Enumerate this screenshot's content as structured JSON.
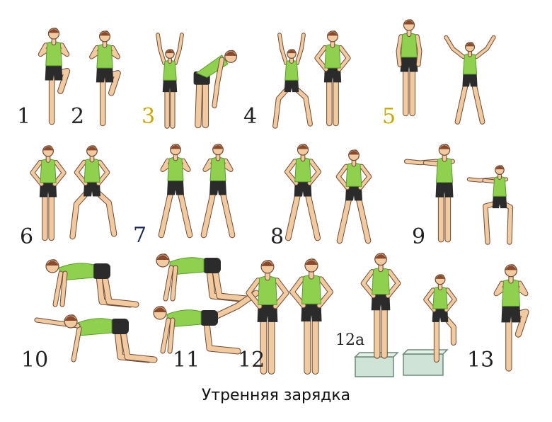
{
  "caption": "Утренняя зарядка",
  "colors": {
    "top": "#8fd14f",
    "shorts": "#2b2b2b",
    "skin": "#f2caa0",
    "hair": "#8a4a2e",
    "outline": "#6b4a35",
    "box": "#cfe3d6",
    "yellow_label": "#c9a800",
    "navy_label": "#1a2a55"
  },
  "exercises": [
    {
      "label": "1"
    },
    {
      "label": "2"
    },
    {
      "label": "3"
    },
    {
      "label": "4"
    },
    {
      "label": "5"
    },
    {
      "label": "6"
    },
    {
      "label": "7"
    },
    {
      "label": "8"
    },
    {
      "label": "9"
    },
    {
      "label": "10"
    },
    {
      "label": "11"
    },
    {
      "label": "12"
    },
    {
      "label": "12a"
    },
    {
      "label": "13"
    }
  ]
}
